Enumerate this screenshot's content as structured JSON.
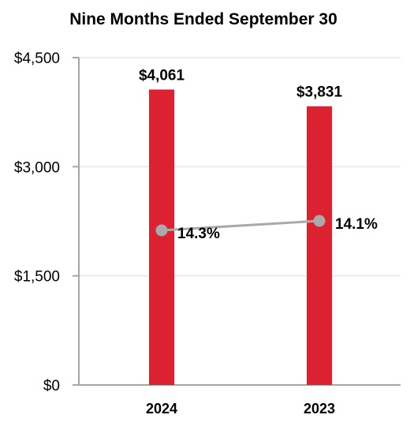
{
  "chart_data": {
    "type": "bar",
    "title": "Nine Months Ended September 30",
    "categories": [
      "2024",
      "2023"
    ],
    "values": [
      4061,
      3831
    ],
    "value_labels": [
      "$4,061",
      "$3,831"
    ],
    "ylim": [
      0,
      4500
    ],
    "yticks": [
      0,
      1500,
      3000,
      4500
    ],
    "ytick_labels": [
      "$0",
      "$1,500",
      "$3,000",
      "$4,500"
    ],
    "grid": true,
    "line_series": {
      "values": [
        14.3,
        14.1
      ],
      "labels": [
        "14.3%",
        "14.1%"
      ]
    },
    "colors": {
      "bar": "#DC2231",
      "line": "#AAAAAA",
      "axis": "#A6A6A6",
      "grid": "#E6E6E6"
    }
  }
}
